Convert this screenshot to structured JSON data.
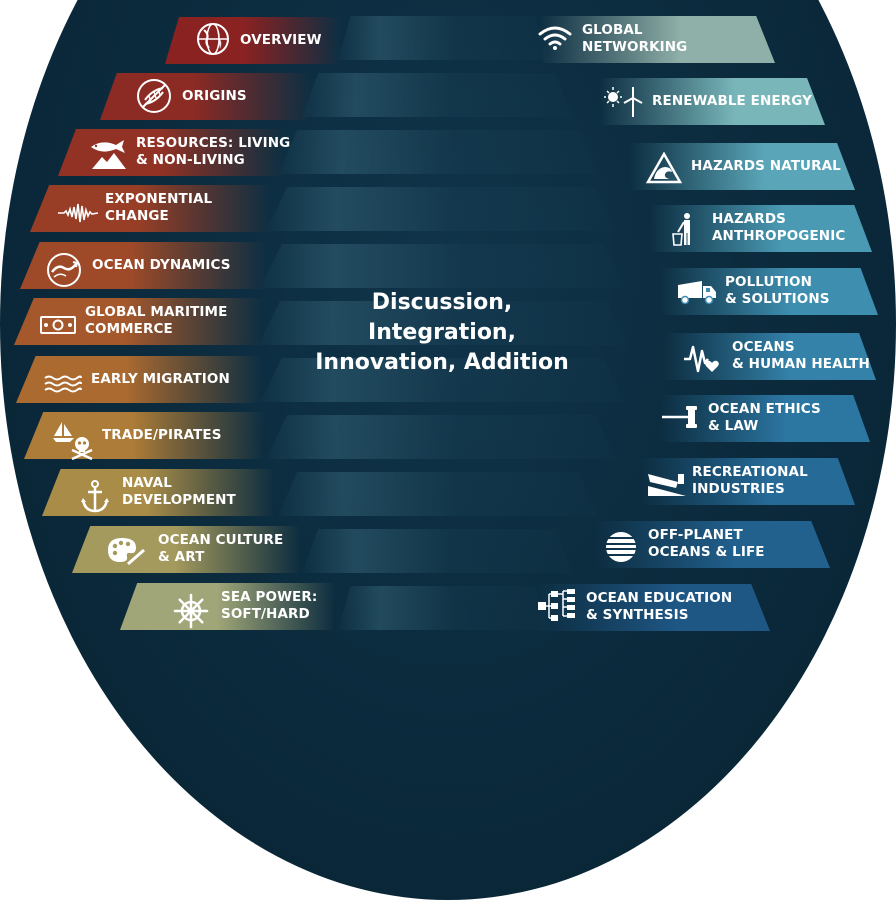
{
  "center_text": {
    "line1": "Discussion, Integration,",
    "line2": "Innovation, Addition"
  },
  "left_topics": [
    {
      "line1": "OVERVIEW",
      "line2": "",
      "icon": "globe-icon",
      "color": "#8a2222"
    },
    {
      "line1": "ORIGINS",
      "line2": "",
      "icon": "dna-icon",
      "color": "#8c2a24"
    },
    {
      "line1": "RESOURCES: LIVING",
      "line2": "& NON-LIVING",
      "icon": "fish-mountain-icon",
      "color": "#923224"
    },
    {
      "line1": "EXPONENTIAL",
      "line2": "CHANGE",
      "icon": "wave-signal-icon",
      "color": "#983e26"
    },
    {
      "line1": "OCEAN DYNAMICS",
      "line2": "",
      "icon": "ocean-current-icon",
      "color": "#9e4a28"
    },
    {
      "line1": "GLOBAL MARITIME",
      "line2": "COMMERCE",
      "icon": "money-icon",
      "color": "#a4582c"
    },
    {
      "line1": "EARLY MIGRATION",
      "line2": "",
      "icon": "waves-icon",
      "color": "#aa6a30"
    },
    {
      "line1": "TRADE/PIRATES",
      "line2": "",
      "icon": "skull-ship-icon",
      "color": "#ad7c38"
    },
    {
      "line1": "NAVAL",
      "line2": "DEVELOPMENT",
      "icon": "anchor-icon",
      "color": "#a88c48"
    },
    {
      "line1": "OCEAN CULTURE",
      "line2": "& ART",
      "icon": "palette-icon",
      "color": "#a49a5e"
    },
    {
      "line1": "SEA POWER:",
      "line2": "SOFT/HARD",
      "icon": "ship-wheel-icon",
      "color": "#a0a678"
    }
  ],
  "right_topics": [
    {
      "line1": "GLOBAL",
      "line2": "NETWORKING",
      "icon": "wifi-icon",
      "color": "#8fb0a8"
    },
    {
      "line1": "RENEWABLE ENERGY",
      "line2": "",
      "icon": "sun-turbine-icon",
      "color": "#78b6ba"
    },
    {
      "line1": "HAZARDS NATURAL",
      "line2": "",
      "icon": "tsunami-warning-icon",
      "color": "#5aa6b8"
    },
    {
      "line1": "HAZARDS",
      "line2": "ANTHROPOGENIC",
      "icon": "person-trash-icon",
      "color": "#4a9ab4"
    },
    {
      "line1": "POLLUTION",
      "line2": "& SOLUTIONS",
      "icon": "garbage-truck-icon",
      "color": "#3e8eb0"
    },
    {
      "line1": "OCEANS",
      "line2": "& HUMAN HEALTH",
      "icon": "heartbeat-icon",
      "color": "#3482aa"
    },
    {
      "line1": "OCEAN ETHICS",
      "line2": "& LAW",
      "icon": "gavel-icon",
      "color": "#2c76a2"
    },
    {
      "line1": "RECREATIONAL",
      "line2": "INDUSTRIES",
      "icon": "boat-ramp-icon",
      "color": "#266a98"
    },
    {
      "line1": "OFF-PLANET",
      "line2": "OCEANS & LIFE",
      "icon": "striped-planet-icon",
      "color": "#22608e"
    },
    {
      "line1": "OCEAN EDUCATION",
      "line2": "& SYNTHESIS",
      "icon": "network-tree-icon",
      "color": "#1e5684"
    }
  ]
}
